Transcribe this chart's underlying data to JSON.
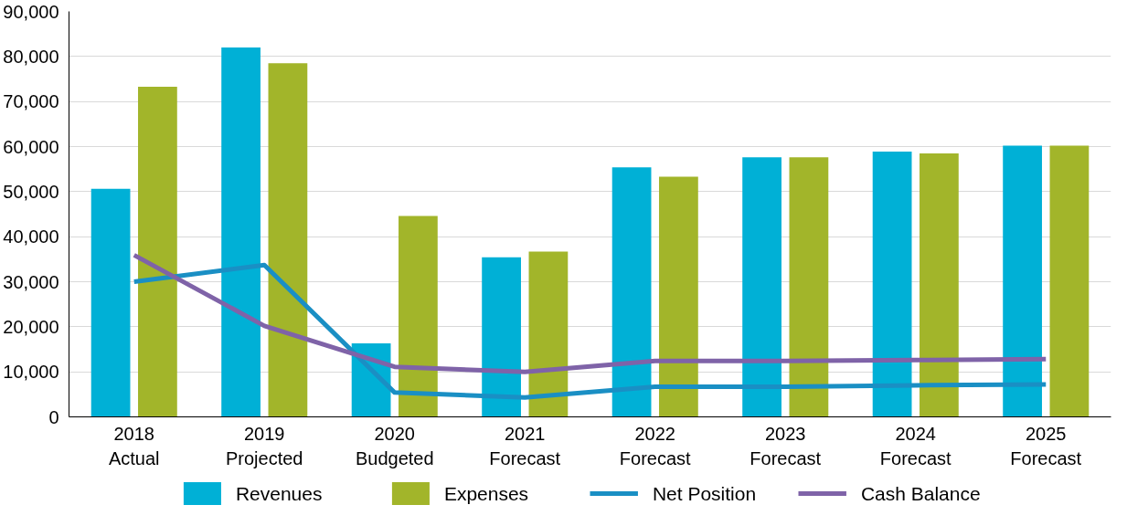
{
  "chart_data": {
    "type": "bar",
    "categories": [
      "2018\nActual",
      "2019\nProjected",
      "2020\nBudgeted",
      "2021\nForecast",
      "2022\nForecast",
      "2023\nForecast",
      "2024\nForecast",
      "2025\nForecast"
    ],
    "series": [
      {
        "name": "Revenues",
        "color": "#00b0d6",
        "values": [
          50600,
          82000,
          16300,
          35400,
          55400,
          57600,
          58900,
          60200
        ]
      },
      {
        "name": "Expenses",
        "color": "#a2b52a",
        "values": [
          73300,
          78500,
          44600,
          36700,
          53300,
          57600,
          58500,
          60200
        ]
      },
      {
        "name": "Net Position",
        "type": "line",
        "color": "#1a8fc4",
        "values": [
          30000,
          33700,
          5400,
          4300,
          6700,
          6700,
          7000,
          7200
        ]
      },
      {
        "name": "Cash Balance",
        "type": "line",
        "color": "#7f63a8",
        "values": [
          35900,
          20200,
          11100,
          10000,
          12400,
          12400,
          12600,
          12800
        ]
      }
    ],
    "ylim": [
      0,
      90000
    ],
    "yticks": [
      {
        "value": 0,
        "label": "0"
      },
      {
        "value": 10000,
        "label": "10,000"
      },
      {
        "value": 20000,
        "label": "20,000"
      },
      {
        "value": 30000,
        "label": "30,000"
      },
      {
        "value": 40000,
        "label": "40,000"
      },
      {
        "value": 50000,
        "label": "50,000"
      },
      {
        "value": 60000,
        "label": "60,000"
      },
      {
        "value": 70000,
        "label": "70,000"
      },
      {
        "value": 80000,
        "label": "80,000"
      },
      {
        "value": 90000,
        "label": "90,000"
      }
    ],
    "grid": "y",
    "legend": "bottom",
    "marker": "none",
    "line_style": "solid"
  }
}
